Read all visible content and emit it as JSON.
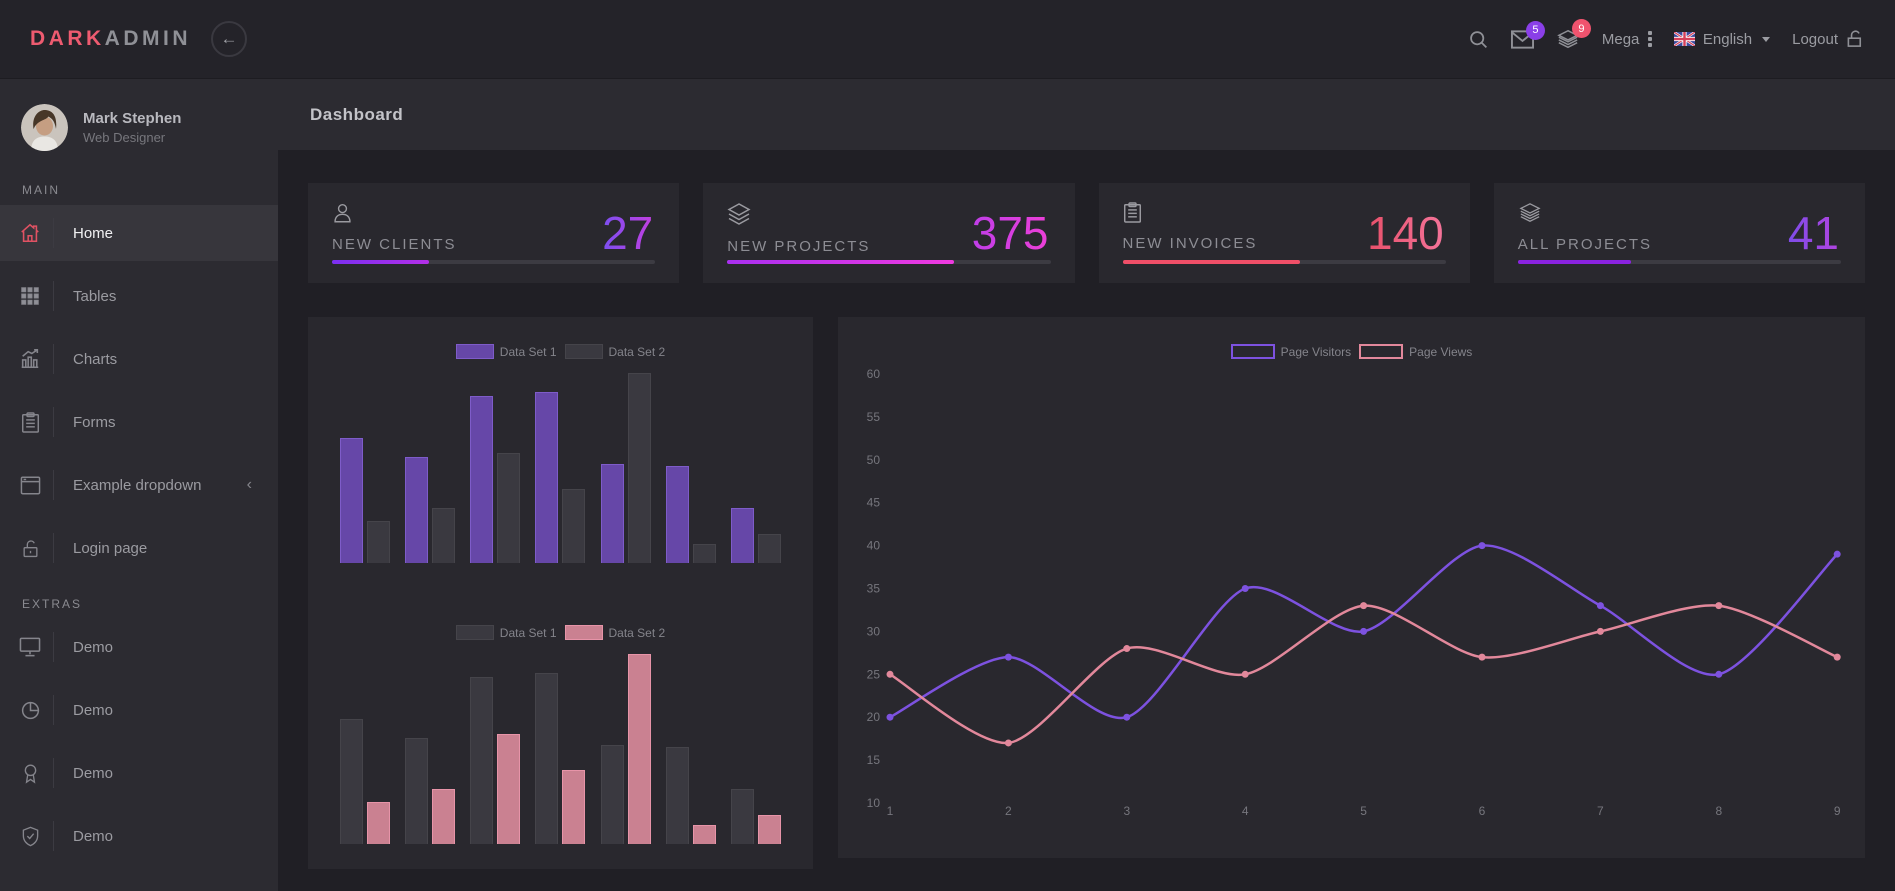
{
  "navbar": {
    "logo_primary": "DARK",
    "logo_secondary": "ADMIN",
    "back_arrow": "←",
    "mail_badge": "5",
    "stack_badge": "9",
    "mega_label": "Mega",
    "language_label": "English",
    "logout_label": "Logout"
  },
  "sidebar": {
    "user": {
      "name": "Mark Stephen",
      "role": "Web Designer"
    },
    "sections": [
      {
        "title": "MAIN",
        "items": [
          {
            "label": "Home",
            "icon": "home",
            "active": true
          },
          {
            "label": "Tables",
            "icon": "grid"
          },
          {
            "label": "Charts",
            "icon": "bar-chart"
          },
          {
            "label": "Forms",
            "icon": "clipboard"
          },
          {
            "label": "Example dropdown",
            "icon": "window",
            "chevron": "‹"
          },
          {
            "label": "Login page",
            "icon": "unlock"
          }
        ]
      },
      {
        "title": "EXTRAS",
        "items": [
          {
            "label": "Demo",
            "icon": "monitor"
          },
          {
            "label": "Demo",
            "icon": "pie"
          },
          {
            "label": "Demo",
            "icon": "award"
          },
          {
            "label": "Demo",
            "icon": "shield"
          }
        ]
      }
    ]
  },
  "header": {
    "title": "Dashboard"
  },
  "stats": [
    {
      "label": "NEW CLIENTS",
      "value": "27",
      "icon": "user",
      "progress": 30,
      "num_gradient": [
        "#7b4ff0",
        "#c13fe0"
      ],
      "bar_gradient": [
        "#7b2ff0",
        "#b32fe8"
      ]
    },
    {
      "label": "NEW PROJECTS",
      "value": "375",
      "icon": "layers",
      "progress": 70,
      "num_gradient": [
        "#bf3ee8",
        "#ed3fd8"
      ],
      "bar_gradient": [
        "#a92ff0",
        "#f03ae0"
      ]
    },
    {
      "label": "NEW INVOICES",
      "value": "140",
      "icon": "clipboard",
      "progress": 55,
      "num_gradient": [
        "#e8506a",
        "#f4749a"
      ],
      "bar_gradient": [
        "#f04f68",
        "#f04f68"
      ]
    },
    {
      "label": "ALL PROJECTS",
      "value": "41",
      "icon": "stack",
      "progress": 35,
      "num_gradient": [
        "#7e4ce8",
        "#b044e0"
      ],
      "bar_gradient": [
        "#8a22e0",
        "#8a22e0"
      ]
    }
  ],
  "chart_data": [
    {
      "type": "bar",
      "title": "bar-chart-1",
      "series": [
        {
          "name": "Data Set 1",
          "color": "#6647a8",
          "border": "#7e5cc9",
          "values": [
            66,
            56,
            88,
            90,
            52,
            51,
            29
          ]
        },
        {
          "name": "Data Set 2",
          "color": "#3a3940",
          "border": "#45444a",
          "values": [
            22,
            29,
            58,
            39,
            100,
            10,
            15
          ]
        }
      ],
      "ylim": [
        0,
        100
      ],
      "legend_position": "top",
      "grid": false
    },
    {
      "type": "bar",
      "title": "bar-chart-2",
      "series": [
        {
          "name": "Data Set 1",
          "color": "#3a3940",
          "border": "#45444a",
          "values": [
            66,
            56,
            88,
            90,
            52,
            51,
            29
          ]
        },
        {
          "name": "Data Set 2",
          "color": "#ca8191",
          "border": "#e794a8",
          "values": [
            22,
            29,
            58,
            39,
            100,
            10,
            15
          ]
        }
      ],
      "ylim": [
        0,
        100
      ],
      "legend_position": "top",
      "grid": false
    },
    {
      "type": "line",
      "title": "page-stats",
      "x": [
        1,
        2,
        3,
        4,
        5,
        6,
        7,
        8,
        9
      ],
      "series": [
        {
          "name": "Page Visitors",
          "color": "#7d52e0",
          "values": [
            20,
            27,
            20,
            35,
            30,
            40,
            33,
            25,
            39
          ]
        },
        {
          "name": "Page Views",
          "color": "#e2889b",
          "values": [
            25,
            17,
            28,
            25,
            33,
            27,
            30,
            33,
            27
          ]
        }
      ],
      "ylim": [
        10,
        60
      ],
      "ytick": 5,
      "legend_position": "top",
      "grid": false
    }
  ]
}
